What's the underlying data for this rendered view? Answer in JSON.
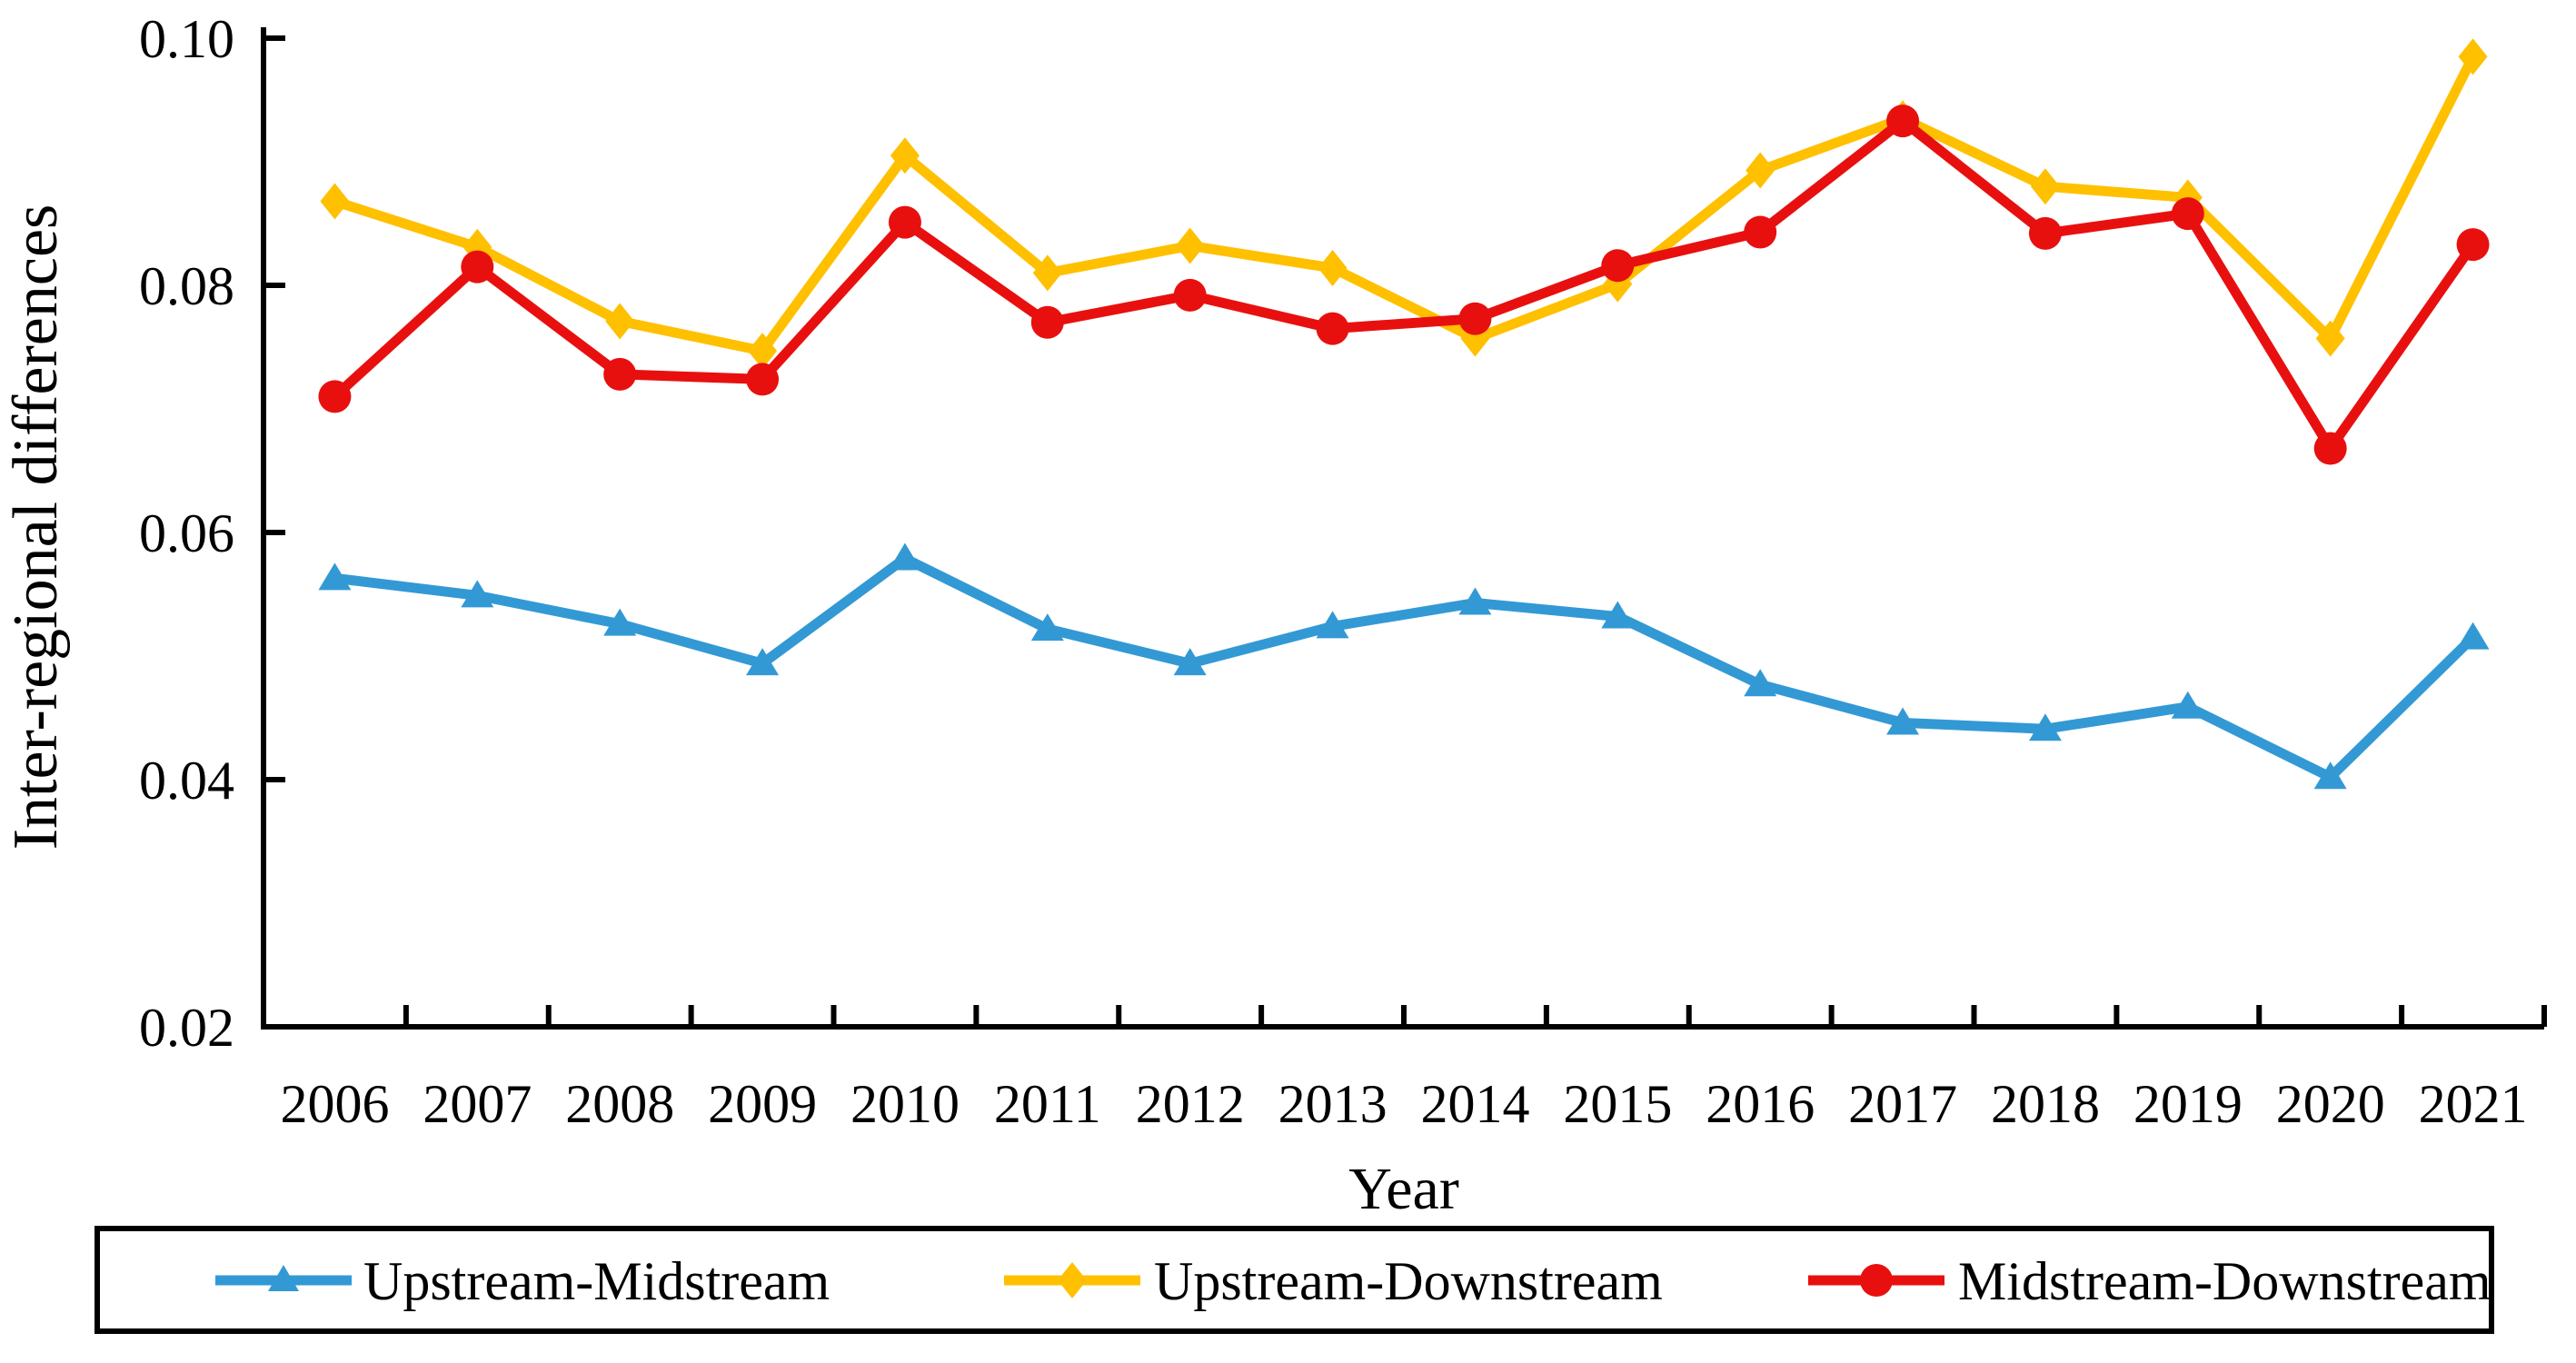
{
  "figure": {
    "background": "#ffffff",
    "axis_color": "#000000",
    "legend_border_color": "#000000"
  },
  "chart_data": {
    "type": "line",
    "title": "",
    "xlabel": "Year",
    "ylabel": "Inter-regional differences",
    "x": [
      2006,
      2007,
      2008,
      2009,
      2010,
      2011,
      2012,
      2013,
      2014,
      2015,
      2016,
      2017,
      2018,
      2019,
      2020,
      2021
    ],
    "ylim": [
      0.02,
      0.1
    ],
    "yticks": [
      0.02,
      0.04,
      0.06,
      0.08,
      0.1
    ],
    "ytick_labels": [
      "0.02",
      "0.04",
      "0.06",
      "0.08",
      "0.10"
    ],
    "grid": false,
    "legend_position": "bottom",
    "series": [
      {
        "name": "Upstream-Midstream",
        "color": "#3399D5",
        "marker": "triangle",
        "values": [
          0.0563,
          0.0549,
          0.0526,
          0.0494,
          0.0579,
          0.0522,
          0.0494,
          0.0524,
          0.0543,
          0.0532,
          0.0477,
          0.0446,
          0.0441,
          0.0459,
          0.0402,
          0.0515
        ]
      },
      {
        "name": "Upstream-Downstream",
        "color": "#FFC000",
        "marker": "diamond",
        "values": [
          0.0868,
          0.0831,
          0.0771,
          0.0747,
          0.0905,
          0.081,
          0.0832,
          0.0814,
          0.0757,
          0.0801,
          0.0893,
          0.0935,
          0.088,
          0.0871,
          0.0757,
          0.0985
        ]
      },
      {
        "name": "Midstream-Downstream",
        "color": "#E8100F",
        "marker": "circle",
        "values": [
          0.071,
          0.0815,
          0.0728,
          0.0724,
          0.0851,
          0.077,
          0.0792,
          0.0765,
          0.0773,
          0.0816,
          0.0843,
          0.0933,
          0.0842,
          0.0858,
          0.0668,
          0.0833
        ]
      }
    ]
  }
}
